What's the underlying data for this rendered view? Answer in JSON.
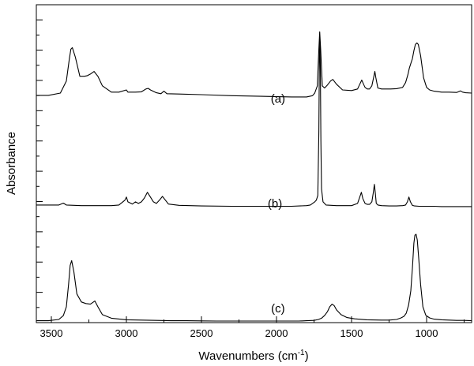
{
  "chart_data": {
    "type": "line",
    "title": "",
    "xlabel": "Wavenumbers (cm",
    "xlabel_sup": "-1",
    "xlabel_close": ")",
    "ylabel": "Absorbance",
    "xlim": [
      3600,
      700
    ],
    "x_reversed": true,
    "ylim": [
      0,
      100
    ],
    "y_tick_labels": false,
    "grid": false,
    "legend": "none",
    "x_ticks": [
      3500,
      3000,
      2500,
      2000,
      1500,
      1000
    ],
    "x_tick_labels": [
      "3500",
      "3000",
      "2500",
      "2000",
      "1500",
      "1000"
    ],
    "line_color": "#000000",
    "series": [
      {
        "name": "(a)",
        "label_x": 1990,
        "label_y": 70.5,
        "x": [
          3600,
          3520,
          3440,
          3400,
          3380,
          3370,
          3360,
          3340,
          3310,
          3280,
          3260,
          3240,
          3215,
          3190,
          3160,
          3100,
          3050,
          3000,
          2990,
          2970,
          2940,
          2900,
          2870,
          2855,
          2840,
          2800,
          2770,
          2750,
          2730,
          2650,
          2500,
          2300,
          2100,
          1900,
          1800,
          1760,
          1745,
          1728,
          1718,
          1712,
          1706,
          1695,
          1680,
          1660,
          1640,
          1625,
          1600,
          1560,
          1500,
          1460,
          1445,
          1432,
          1420,
          1410,
          1395,
          1380,
          1365,
          1352,
          1345,
          1338,
          1325,
          1300,
          1270,
          1240,
          1200,
          1160,
          1140,
          1125,
          1115,
          1105,
          1095,
          1085,
          1075,
          1065,
          1055,
          1040,
          1020,
          1000,
          980,
          950,
          900,
          850,
          800,
          775,
          760,
          740,
          700
        ],
        "y": [
          71.5,
          71.5,
          72.2,
          76.0,
          83.0,
          86.0,
          86.5,
          83.5,
          77.5,
          77.5,
          77.7,
          78.2,
          79.0,
          77.5,
          74.5,
          72.5,
          72.5,
          73.2,
          72.5,
          72.5,
          72.5,
          72.6,
          73.5,
          73.7,
          73.2,
          72.3,
          72.0,
          72.8,
          72.0,
          71.9,
          71.7,
          71.4,
          71.2,
          71.0,
          71.0,
          71.4,
          72.2,
          74.5,
          86.0,
          91.5,
          86.0,
          74.5,
          73.8,
          74.8,
          76.0,
          76.5,
          75.0,
          73.2,
          73.0,
          73.5,
          75.0,
          76.3,
          75.0,
          74.0,
          73.5,
          73.5,
          74.5,
          77.3,
          79.0,
          77.0,
          73.8,
          73.5,
          73.5,
          73.5,
          73.6,
          74.0,
          75.5,
          78.0,
          80.0,
          81.5,
          83.0,
          85.5,
          87.5,
          88.0,
          87.5,
          84.0,
          77.0,
          74.0,
          73.2,
          72.8,
          72.5,
          72.5,
          72.4,
          72.9,
          72.5,
          72.3,
          72.2
        ]
      },
      {
        "name": "(b)",
        "label_x": 2010,
        "label_y": 37.5,
        "x": [
          3600,
          3500,
          3450,
          3420,
          3400,
          3300,
          3200,
          3100,
          3050,
          3010,
          3000,
          2990,
          2960,
          2940,
          2920,
          2900,
          2880,
          2860,
          2840,
          2820,
          2800,
          2780,
          2760,
          2740,
          2720,
          2650,
          2500,
          2300,
          2100,
          1900,
          1800,
          1775,
          1760,
          1745,
          1735,
          1725,
          1718,
          1714,
          1711,
          1708,
          1704,
          1700,
          1690,
          1670,
          1600,
          1500,
          1460,
          1445,
          1435,
          1425,
          1410,
          1395,
          1380,
          1365,
          1355,
          1348,
          1342,
          1335,
          1325,
          1300,
          1250,
          1200,
          1160,
          1140,
          1128,
          1118,
          1108,
          1095,
          1080,
          1050,
          1000,
          950,
          900,
          850,
          800,
          700
        ],
        "y": [
          37.0,
          37.0,
          37.0,
          37.6,
          37.0,
          36.8,
          36.8,
          36.8,
          37.0,
          38.5,
          39.5,
          38.0,
          37.3,
          38.0,
          37.5,
          38.0,
          39.2,
          41.0,
          39.5,
          38.0,
          37.5,
          38.5,
          39.7,
          38.5,
          37.3,
          36.9,
          36.7,
          36.6,
          36.6,
          36.6,
          36.8,
          37.0,
          37.5,
          38.0,
          38.5,
          40.0,
          60.0,
          83.0,
          90.0,
          80.0,
          57.0,
          42.0,
          38.0,
          37.0,
          36.8,
          36.8,
          37.5,
          39.5,
          41.0,
          39.0,
          37.5,
          37.2,
          37.2,
          38.0,
          41.0,
          43.5,
          41.0,
          37.5,
          37.0,
          36.8,
          36.7,
          36.7,
          36.8,
          37.0,
          38.0,
          39.5,
          38.0,
          36.9,
          36.7,
          36.6,
          36.6,
          36.6,
          36.5,
          36.5,
          36.5,
          36.5
        ]
      },
      {
        "name": "(c)",
        "label_x": 1990,
        "label_y": 4.5,
        "x": [
          3600,
          3520,
          3450,
          3420,
          3400,
          3385,
          3375,
          3365,
          3350,
          3330,
          3300,
          3270,
          3240,
          3225,
          3210,
          3190,
          3160,
          3100,
          3000,
          2900,
          2800,
          2700,
          2600,
          2400,
          2200,
          2000,
          1850,
          1800,
          1750,
          1720,
          1700,
          1680,
          1660,
          1645,
          1630,
          1615,
          1600,
          1570,
          1530,
          1480,
          1400,
          1300,
          1250,
          1200,
          1170,
          1150,
          1135,
          1120,
          1105,
          1095,
          1085,
          1078,
          1070,
          1062,
          1052,
          1040,
          1025,
          1005,
          980,
          950,
          900,
          850,
          800,
          750,
          700
        ],
        "y": [
          0.6,
          0.6,
          1.0,
          2.2,
          5.0,
          12.0,
          18.0,
          19.5,
          16.0,
          9.0,
          6.5,
          6.0,
          5.8,
          6.3,
          6.8,
          5.0,
          2.5,
          1.4,
          0.9,
          0.8,
          0.7,
          0.6,
          0.6,
          0.5,
          0.5,
          0.5,
          0.5,
          0.6,
          0.7,
          1.0,
          1.4,
          2.2,
          3.5,
          5.0,
          5.8,
          5.3,
          4.0,
          2.5,
          1.6,
          1.2,
          0.9,
          0.8,
          0.8,
          1.0,
          1.5,
          2.0,
          3.0,
          5.5,
          10.0,
          17.0,
          25.0,
          27.5,
          27.8,
          26.0,
          20.0,
          12.0,
          5.0,
          2.3,
          1.5,
          1.1,
          0.9,
          0.8,
          0.7,
          0.7,
          0.6
        ]
      }
    ]
  }
}
